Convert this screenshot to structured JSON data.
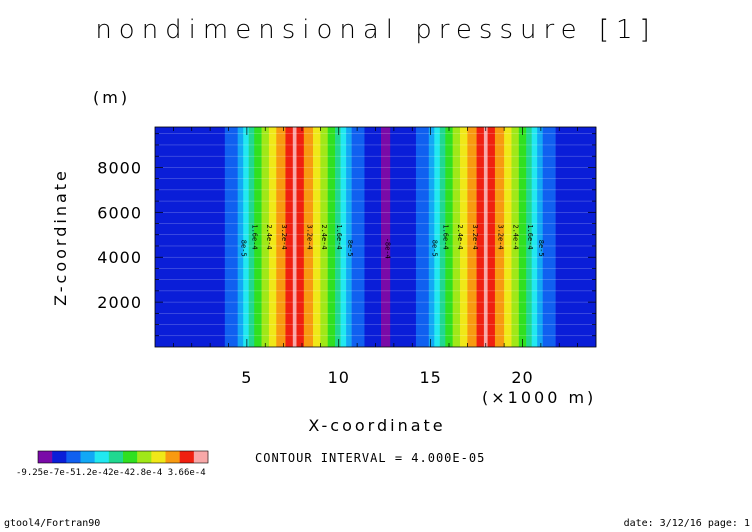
{
  "chart_data": {
    "type": "heatmap",
    "title": "nondimensional pressure [1]",
    "xlabel": "X-coordinate",
    "ylabel": "Z-coordinate",
    "x_unit": "(×1000 m)",
    "y_unit": "(m)",
    "xlim": [
      0,
      24
    ],
    "ylim": [
      0,
      9800
    ],
    "x_ticks": [
      5,
      10,
      15,
      20
    ],
    "x_tick_labels": [
      "5",
      "10",
      "15",
      "20"
    ],
    "y_ticks": [
      2000,
      4000,
      6000,
      8000
    ],
    "y_tick_labels": [
      "2000",
      "4000",
      "6000",
      "8000"
    ],
    "contour_interval_text": "CONTOUR INTERVAL = 4.000E-05",
    "colorbar": {
      "colors": [
        "#7a0aa8",
        "#0a1ed8",
        "#1060f0",
        "#12a8f5",
        "#22e8f0",
        "#20d890",
        "#30e020",
        "#a0e818",
        "#f0e818",
        "#f89a10",
        "#f02010",
        "#f8a8a8"
      ],
      "labels": [
        "-9.25e-4",
        "-5.2e-4",
        "-1.2e-4",
        "2.8e-4",
        "3.66e-4"
      ],
      "label_text": "-9.25e-7e-51.2e-42e-42.8e-4 3.66e-4"
    },
    "bands": [
      {
        "x0": 0,
        "x1": 3.8,
        "color": "#0a1ed8"
      },
      {
        "x0": 3.8,
        "x1": 4.5,
        "color": "#1060f0"
      },
      {
        "x0": 4.5,
        "x1": 4.8,
        "color": "#12a8f5"
      },
      {
        "x0": 4.8,
        "x1": 5.1,
        "color": "#22e8f0"
      },
      {
        "x0": 5.1,
        "x1": 5.4,
        "color": "#20d890"
      },
      {
        "x0": 5.4,
        "x1": 5.8,
        "color": "#30e020"
      },
      {
        "x0": 5.8,
        "x1": 6.2,
        "color": "#a0e818"
      },
      {
        "x0": 6.2,
        "x1": 6.6,
        "color": "#f0e818"
      },
      {
        "x0": 6.6,
        "x1": 7.1,
        "color": "#f89a10"
      },
      {
        "x0": 7.1,
        "x1": 7.5,
        "color": "#f02010"
      },
      {
        "x0": 7.5,
        "x1": 7.7,
        "color": "#f8a8a8"
      },
      {
        "x0": 7.7,
        "x1": 8.1,
        "color": "#f02010"
      },
      {
        "x0": 8.1,
        "x1": 8.6,
        "color": "#f89a10"
      },
      {
        "x0": 8.6,
        "x1": 9.0,
        "color": "#f0e818"
      },
      {
        "x0": 9.0,
        "x1": 9.4,
        "color": "#a0e818"
      },
      {
        "x0": 9.4,
        "x1": 9.8,
        "color": "#30e020"
      },
      {
        "x0": 9.8,
        "x1": 10.1,
        "color": "#20d890"
      },
      {
        "x0": 10.1,
        "x1": 10.4,
        "color": "#22e8f0"
      },
      {
        "x0": 10.4,
        "x1": 10.7,
        "color": "#12a8f5"
      },
      {
        "x0": 10.7,
        "x1": 11.4,
        "color": "#1060f0"
      },
      {
        "x0": 11.4,
        "x1": 12.3,
        "color": "#0a1ed8"
      },
      {
        "x0": 12.3,
        "x1": 12.8,
        "color": "#7a0aa8"
      },
      {
        "x0": 12.8,
        "x1": 14.2,
        "color": "#0a1ed8"
      },
      {
        "x0": 14.2,
        "x1": 14.9,
        "color": "#1060f0"
      },
      {
        "x0": 14.9,
        "x1": 15.2,
        "color": "#12a8f5"
      },
      {
        "x0": 15.2,
        "x1": 15.5,
        "color": "#22e8f0"
      },
      {
        "x0": 15.5,
        "x1": 15.8,
        "color": "#20d890"
      },
      {
        "x0": 15.8,
        "x1": 16.2,
        "color": "#30e020"
      },
      {
        "x0": 16.2,
        "x1": 16.6,
        "color": "#a0e818"
      },
      {
        "x0": 16.6,
        "x1": 17.0,
        "color": "#f0e818"
      },
      {
        "x0": 17.0,
        "x1": 17.5,
        "color": "#f89a10"
      },
      {
        "x0": 17.5,
        "x1": 17.9,
        "color": "#f02010"
      },
      {
        "x0": 17.9,
        "x1": 18.1,
        "color": "#f8a8a8"
      },
      {
        "x0": 18.1,
        "x1": 18.5,
        "color": "#f02010"
      },
      {
        "x0": 18.5,
        "x1": 19.0,
        "color": "#f89a10"
      },
      {
        "x0": 19.0,
        "x1": 19.4,
        "color": "#f0e818"
      },
      {
        "x0": 19.4,
        "x1": 19.8,
        "color": "#a0e818"
      },
      {
        "x0": 19.8,
        "x1": 20.2,
        "color": "#30e020"
      },
      {
        "x0": 20.2,
        "x1": 20.5,
        "color": "#20d890"
      },
      {
        "x0": 20.5,
        "x1": 20.8,
        "color": "#22e8f0"
      },
      {
        "x0": 20.8,
        "x1": 21.1,
        "color": "#12a8f5"
      },
      {
        "x0": 21.1,
        "x1": 21.8,
        "color": "#1060f0"
      },
      {
        "x0": 21.8,
        "x1": 24,
        "color": "#0a1ed8"
      }
    ],
    "contour_labels": [
      {
        "x": 4.7,
        "z": 4400,
        "text": "8e-5"
      },
      {
        "x": 5.3,
        "z": 4900,
        "text": "1.6e-4"
      },
      {
        "x": 6.1,
        "z": 4900,
        "text": "2.4e-4"
      },
      {
        "x": 6.9,
        "z": 4900,
        "text": "3.2e-4"
      },
      {
        "x": 8.3,
        "z": 4900,
        "text": "3.2e-4"
      },
      {
        "x": 9.1,
        "z": 4900,
        "text": "2.4e-4"
      },
      {
        "x": 9.9,
        "z": 4900,
        "text": "1.6e-4"
      },
      {
        "x": 10.5,
        "z": 4400,
        "text": "8e-5"
      },
      {
        "x": 12.55,
        "z": 4400,
        "text": "-8e-4"
      },
      {
        "x": 15.1,
        "z": 4400,
        "text": "8e-5"
      },
      {
        "x": 15.7,
        "z": 4900,
        "text": "1.6e-4"
      },
      {
        "x": 16.5,
        "z": 4900,
        "text": "2.4e-4"
      },
      {
        "x": 17.3,
        "z": 4900,
        "text": "3.2e-4"
      },
      {
        "x": 18.7,
        "z": 4900,
        "text": "3.2e-4"
      },
      {
        "x": 19.5,
        "z": 4900,
        "text": "2.4e-4"
      },
      {
        "x": 20.3,
        "z": 4900,
        "text": "1.6e-4"
      },
      {
        "x": 20.9,
        "z": 4400,
        "text": "8e-5"
      }
    ]
  },
  "footer": {
    "left": "gtool4/Fortran90",
    "right": "date: 3/12/16 page: 1"
  },
  "colors": {
    "background": "#ffffff",
    "axis": "#000000",
    "gridline": "#ffffff"
  }
}
